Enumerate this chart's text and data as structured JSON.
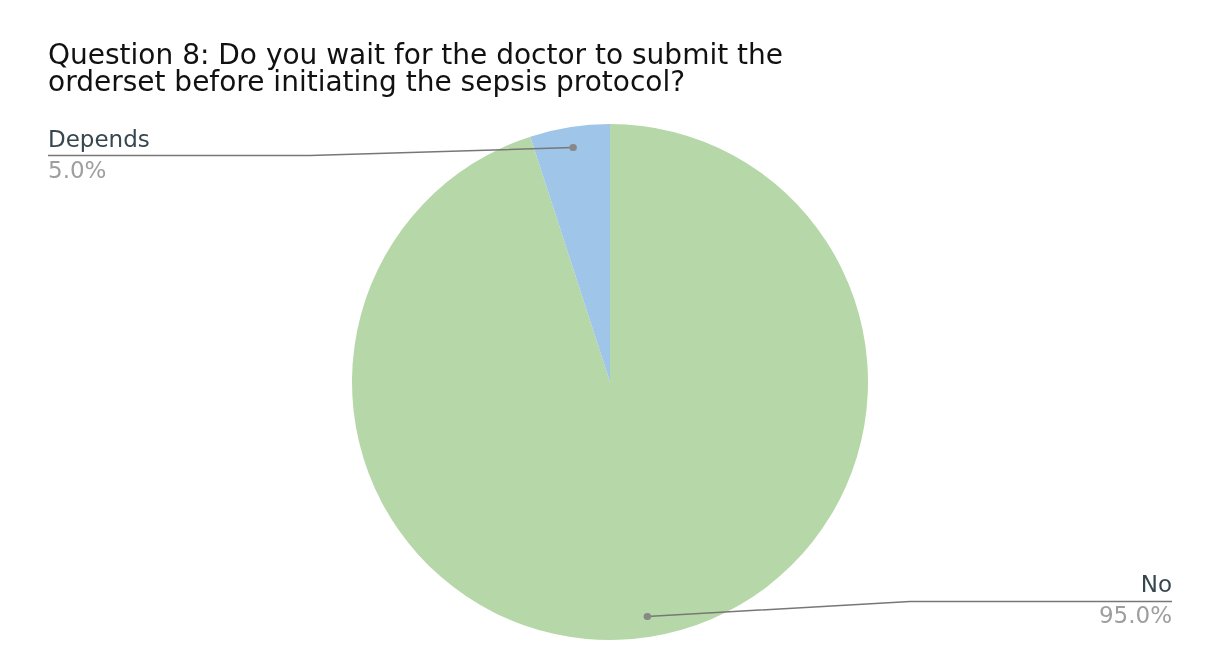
{
  "chart_data": {
    "type": "pie",
    "title": "Question 8: Do you wait for the doctor to submit the orderset before initiating the sepsis protocol?",
    "categories": [
      "No",
      "Depends"
    ],
    "values": [
      95.0,
      5.0
    ],
    "colors": [
      "#b6d7a8",
      "#9fc5e8"
    ],
    "value_labels": [
      "95.0%",
      "5.0%"
    ]
  }
}
